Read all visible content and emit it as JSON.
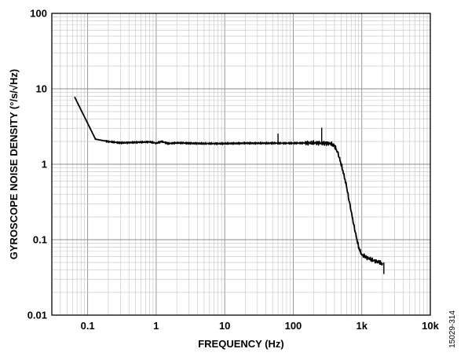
{
  "chart_data": {
    "type": "line",
    "title": "",
    "xlabel": "FREQUENCY (Hz)",
    "ylabel": "GYROSCOPE NOISE DENSITY (°/s/√Hz)",
    "x_scale": "log",
    "y_scale": "log",
    "xlim": [
      0.03,
      10000
    ],
    "ylim": [
      0.01,
      100
    ],
    "x_ticks": [
      {
        "value": 0.1,
        "label": "0.1"
      },
      {
        "value": 1,
        "label": "1"
      },
      {
        "value": 10,
        "label": "10"
      },
      {
        "value": 100,
        "label": "100"
      },
      {
        "value": 1000,
        "label": "1k"
      },
      {
        "value": 10000,
        "label": "10k"
      }
    ],
    "y_ticks": [
      {
        "value": 0.01,
        "label": "0.01"
      },
      {
        "value": 0.1,
        "label": "0.1"
      },
      {
        "value": 1,
        "label": "1"
      },
      {
        "value": 10,
        "label": "10"
      },
      {
        "value": 100,
        "label": "100"
      }
    ],
    "grid": true,
    "legend": "none",
    "series": [
      {
        "color": "#000000",
        "x": [
          0.065,
          0.13,
          0.2,
          0.3,
          0.5,
          0.8,
          1.0,
          1.2,
          1.5,
          2,
          3,
          5,
          10,
          20,
          50,
          100,
          200,
          300,
          350,
          400,
          450,
          500,
          550,
          600,
          650,
          700,
          750,
          800,
          850,
          900,
          950,
          1000,
          1100,
          1200,
          1400,
          1600,
          1800,
          2000
        ],
        "y": [
          7.7,
          2.15,
          2.0,
          1.92,
          1.95,
          1.98,
          1.9,
          2.0,
          1.88,
          1.92,
          1.9,
          1.88,
          1.88,
          1.9,
          1.9,
          1.9,
          1.92,
          1.9,
          1.88,
          1.75,
          1.4,
          1.0,
          0.72,
          0.5,
          0.34,
          0.24,
          0.17,
          0.13,
          0.1,
          0.08,
          0.07,
          0.063,
          0.06,
          0.058,
          0.054,
          0.052,
          0.05,
          0.048
        ]
      }
    ],
    "spikes": [
      {
        "x": 60,
        "y_low": 1.9,
        "y_high": 2.55
      },
      {
        "x": 260,
        "y_low": 1.9,
        "y_high": 3.05
      },
      {
        "x": 2100,
        "y_low": 0.035,
        "y_high": 0.05
      }
    ]
  },
  "figure_id": "15029-314"
}
